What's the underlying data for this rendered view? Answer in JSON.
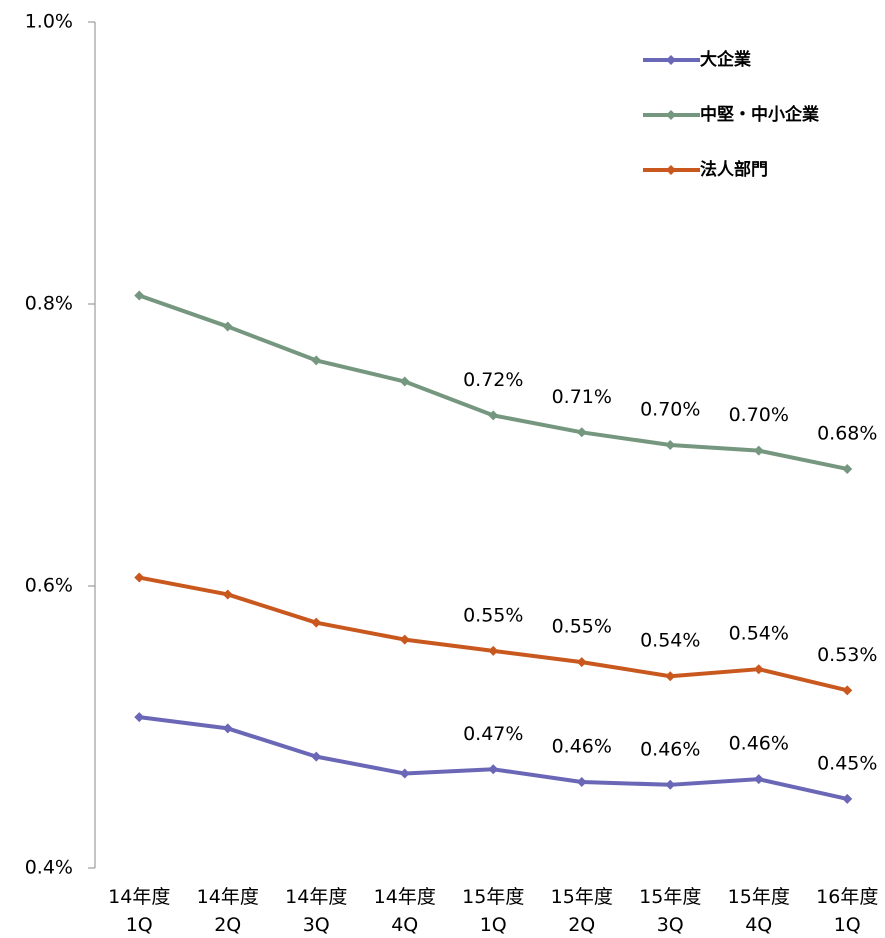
{
  "chart_data": {
    "type": "line",
    "categories": [
      [
        "14年度",
        "1Q"
      ],
      [
        "14年度",
        "2Q"
      ],
      [
        "14年度",
        "3Q"
      ],
      [
        "14年度",
        "4Q"
      ],
      [
        "15年度",
        "1Q"
      ],
      [
        "15年度",
        "2Q"
      ],
      [
        "15年度",
        "3Q"
      ],
      [
        "15年度",
        "4Q"
      ],
      [
        "16年度",
        "1Q"
      ]
    ],
    "series": [
      {
        "name": "大企業",
        "color": "#6b67b7",
        "values": [
          0.507,
          0.499,
          0.479,
          0.467,
          0.47,
          0.461,
          0.459,
          0.463,
          0.449
        ],
        "value_labels": [
          null,
          null,
          null,
          null,
          "0.47%",
          "0.46%",
          "0.46%",
          "0.46%",
          "0.45%"
        ]
      },
      {
        "name": "中堅・中小企業",
        "color": "#76977f",
        "values": [
          0.806,
          0.784,
          0.76,
          0.745,
          0.721,
          0.709,
          0.7,
          0.696,
          0.683
        ],
        "value_labels": [
          null,
          null,
          null,
          null,
          "0.72%",
          "0.71%",
          "0.70%",
          "0.70%",
          "0.68%"
        ]
      },
      {
        "name": "法人部門",
        "color": "#c9581f",
        "values": [
          0.606,
          0.594,
          0.574,
          0.562,
          0.554,
          0.546,
          0.536,
          0.541,
          0.526
        ],
        "value_labels": [
          null,
          null,
          null,
          null,
          "0.55%",
          "0.55%",
          "0.54%",
          "0.54%",
          "0.53%"
        ]
      }
    ],
    "ylim": [
      0.4,
      1.0
    ],
    "yticks": [
      {
        "value": 0.4,
        "label": "0.4%"
      },
      {
        "value": 0.6,
        "label": "0.6%"
      },
      {
        "value": 0.8,
        "label": "0.8%"
      },
      {
        "value": 1.0,
        "label": "1.0%"
      }
    ],
    "legend": "top-right"
  }
}
